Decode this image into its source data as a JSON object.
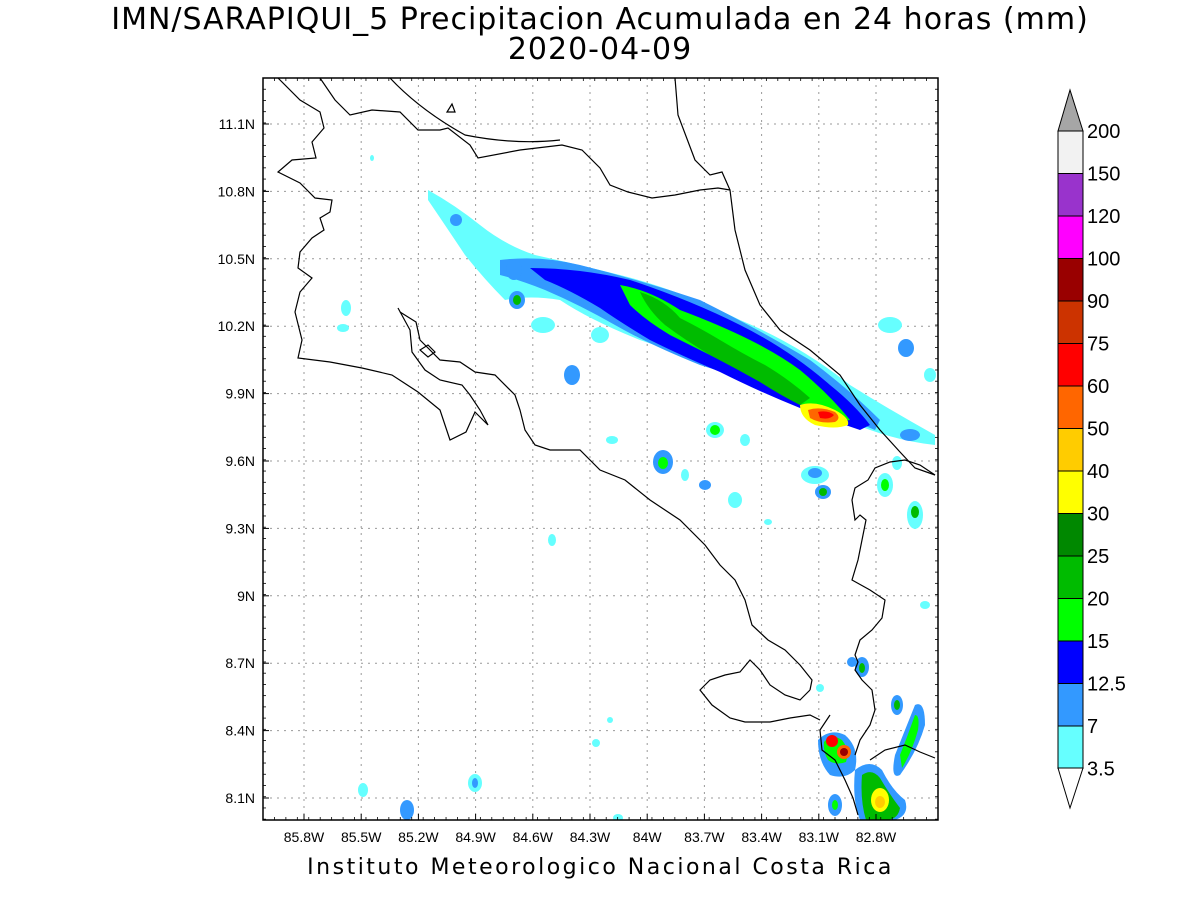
{
  "title": {
    "line1": "IMN/SARAPIQUI_5 Precipitacion Acumulada en 24 horas (mm)",
    "line2": "2020-04-09"
  },
  "footer": "Instituto Meteorologico Nacional Costa Rica",
  "axes": {
    "lat_ticks": [
      "11.1N",
      "10.8N",
      "10.5N",
      "10.2N",
      "9.9N",
      "9.6N",
      "9.3N",
      "9N",
      "8.7N",
      "8.4N",
      "8.1N"
    ],
    "lon_ticks": [
      "85.8W",
      "85.5W",
      "85.2W",
      "84.9W",
      "84.6W",
      "84.3W",
      "84W",
      "83.7W",
      "83.4W",
      "83.1W",
      "82.8W"
    ],
    "grid": "dotted"
  },
  "colorbar": {
    "labels": [
      "200",
      "150",
      "120",
      "100",
      "90",
      "75",
      "60",
      "50",
      "40",
      "30",
      "25",
      "20",
      "15",
      "12.5",
      "7",
      "3.5"
    ],
    "colors": [
      "#a6a6a6",
      "#f2f2f2",
      "#9933cc",
      "#ff00ff",
      "#990000",
      "#cc3300",
      "#ff0000",
      "#ff6600",
      "#ffcc00",
      "#ffff00",
      "#008800",
      "#00bb00",
      "#00ff00",
      "#0000ff",
      "#3399ff",
      "#66ffff",
      "#ffffff"
    ]
  }
}
